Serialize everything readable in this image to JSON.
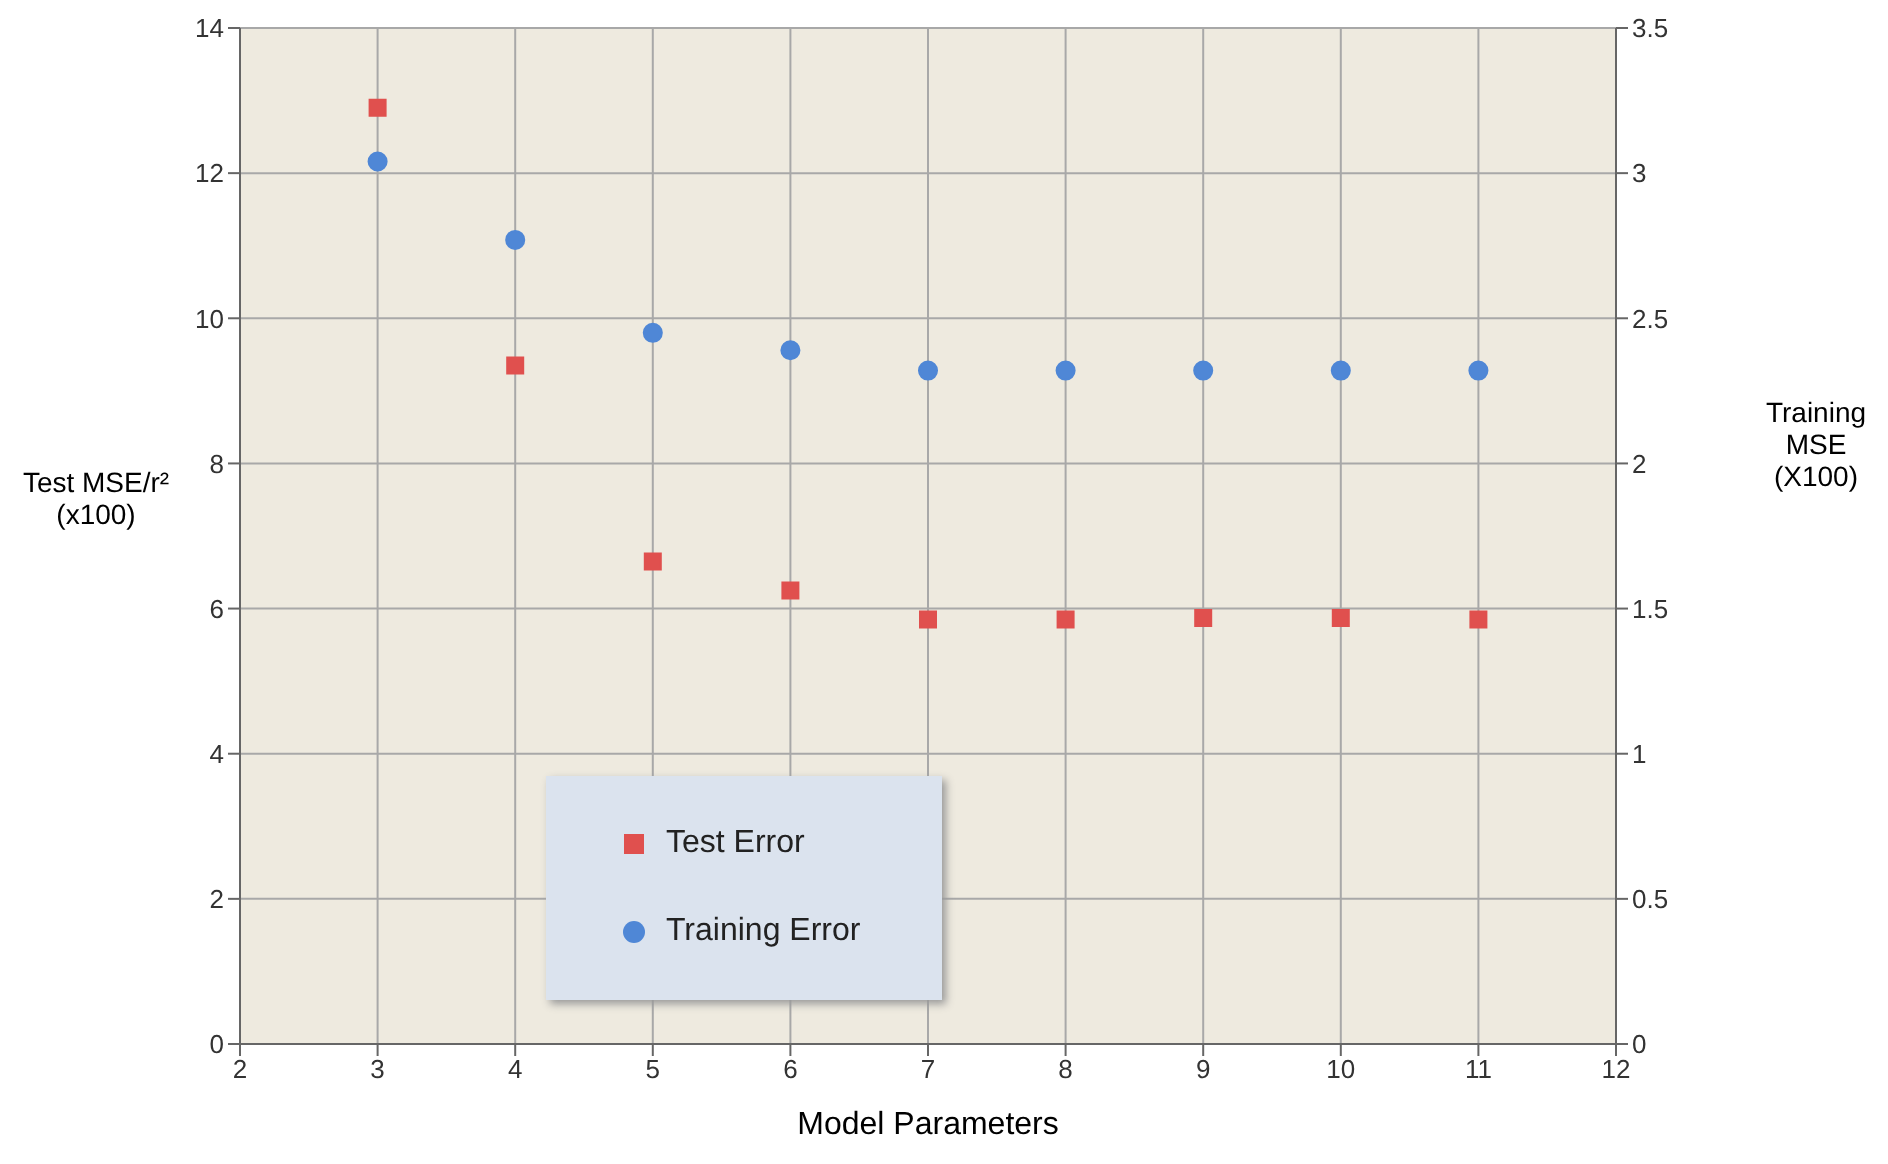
{
  "chart_data": {
    "type": "scatter",
    "xlabel": "Model Parameters",
    "ylabel": "Test MSE/r²\n(x100)",
    "y2label": "Training\nMSE\n(X100)",
    "x": [
      3,
      4,
      5,
      6,
      7,
      8,
      9,
      10,
      11
    ],
    "series": [
      {
        "name": "Test Error",
        "color": "#e0504e",
        "marker": "square",
        "values": [
          12.9,
          9.35,
          6.65,
          6.25,
          5.85,
          5.85,
          5.87,
          5.87,
          5.85
        ]
      },
      {
        "name": "Training Error",
        "color": "#4f87d6",
        "marker": "circle",
        "axis": "y2",
        "values": [
          3.04,
          2.77,
          2.45,
          2.39,
          2.32,
          2.32,
          2.32,
          2.32,
          2.32
        ]
      }
    ],
    "xlim": [
      2,
      12
    ],
    "xticks": [
      2,
      3,
      4,
      5,
      6,
      7,
      8,
      9,
      10,
      11,
      12
    ],
    "ylim": [
      0,
      14
    ],
    "yticks": [
      0,
      2,
      4,
      6,
      8,
      10,
      12,
      14
    ],
    "y2lim": [
      0,
      3.5
    ],
    "y2ticks": [
      0,
      0.5,
      1,
      1.5,
      2,
      2.5,
      3,
      3.5
    ],
    "grid": true,
    "legend": "bottom left"
  }
}
